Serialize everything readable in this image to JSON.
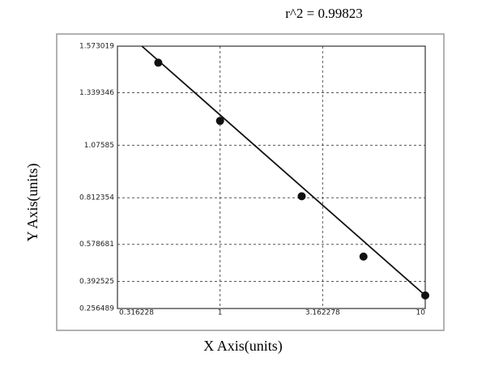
{
  "chart_data": {
    "type": "scatter",
    "title": "r^2 = 0.99823",
    "xlabel": "X Axis(units)",
    "ylabel": "Y Axis(units)",
    "xscale": "log",
    "xlim": [
      0.316228,
      10
    ],
    "xticks": [
      0.316228,
      1,
      3.162278,
      10
    ],
    "ylim": [
      0.256489,
      1.573019
    ],
    "yticks": [
      0.256489,
      0.392525,
      0.578681,
      0.812354,
      1.07585,
      1.339346,
      1.573019
    ],
    "grid": true,
    "points": {
      "color": "#111111",
      "x": [
        0.5,
        1,
        2.5,
        5,
        10
      ],
      "values": [
        1.49,
        1.198,
        0.82,
        0.517,
        0.322
      ]
    },
    "fit_line": {
      "color": "#111111",
      "x": [
        0.416,
        10
      ],
      "values": [
        1.573019,
        0.322
      ]
    }
  }
}
